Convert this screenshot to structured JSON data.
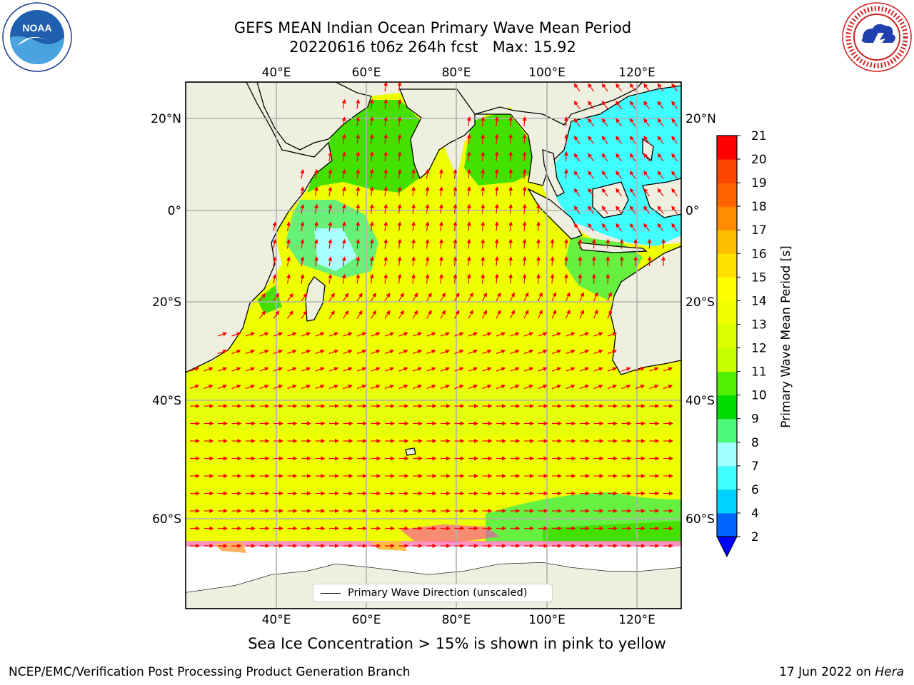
{
  "title": {
    "line1": "GEFS MEAN Indian Ocean Primary Wave Mean Period",
    "line2": "20220616 t06z 264h fcst   Max: 15.92"
  },
  "logos": {
    "left": "noaa-logo",
    "left_text": "NOAA",
    "right": "national-weather-service-logo",
    "right_text": "NATIONAL WEATHER SERVICE"
  },
  "map": {
    "lon_ticks": [
      "40°E",
      "60°E",
      "80°E",
      "100°E",
      "120°E"
    ],
    "lat_ticks": [
      "20°N",
      "0°",
      "20°S",
      "40°S",
      "60°S"
    ],
    "legend_label": "Primary Wave Direction (unscaled)",
    "vector_color": "#ff0000",
    "land_color": "#efefdf",
    "sea_ice_color": "#ffffff"
  },
  "colorbar": {
    "label": "Primary Wave Mean Period [s]",
    "tick_labels": [
      "2",
      "4",
      "6",
      "7",
      "8",
      "9",
      "10",
      "11",
      "12",
      "13",
      "14",
      "15",
      "16",
      "17",
      "18",
      "19",
      "20",
      "21"
    ],
    "colors": [
      "#0064ff",
      "#00d2ff",
      "#40ffff",
      "#a0ffff",
      "#4bf878",
      "#00dc00",
      "#50f000",
      "#c8ff00",
      "#dcff00",
      "#f0ff00",
      "#ffff00",
      "#ffe100",
      "#ffbe00",
      "#ff8c00",
      "#ff6400",
      "#ff4600",
      "#ff0000"
    ],
    "under_color": "#0000ff"
  },
  "chart_data": {
    "type": "heatmap",
    "title": "GEFS MEAN Indian Ocean Primary Wave Mean Period",
    "subtitle": "20220616 t06z 264h fcst   Max: 15.92",
    "variable": "Primary Wave Mean Period [s]",
    "max_value": 15.92,
    "lon_range": [
      20,
      130
    ],
    "lat_range": [
      -75,
      28
    ],
    "color_levels": [
      2,
      4,
      6,
      7,
      8,
      9,
      10,
      11,
      12,
      13,
      14,
      15,
      16,
      17,
      18,
      19,
      20,
      21
    ]
  },
  "subtitle_note": "Sea Ice Concentration > 15% is shown in pink to yellow",
  "footer": {
    "left": "NCEP/EMC/Verification Post Processing Product Generation Branch",
    "date": "17 Jun 2022 on ",
    "machine": "Hera"
  }
}
